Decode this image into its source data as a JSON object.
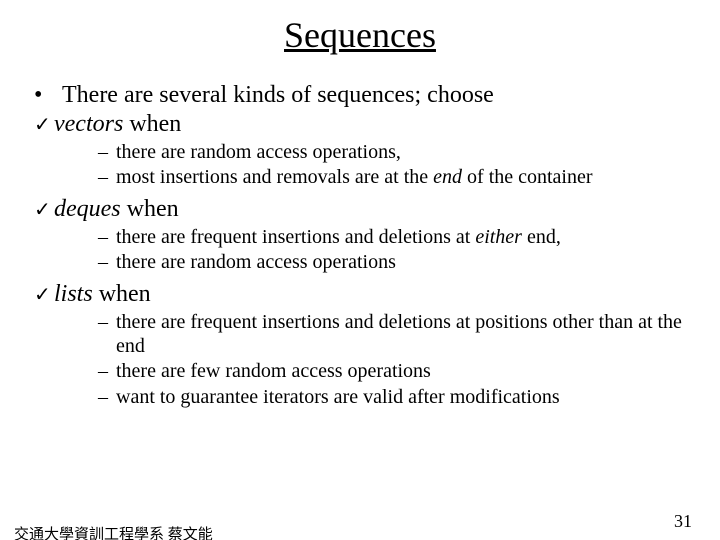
{
  "title": "Sequences",
  "intro": "There are several kinds of sequences; choose",
  "sections": [
    {
      "keyword": "vectors",
      "suffix": " when",
      "subs": [
        {
          "pre": "there are random access operations,",
          "em": "",
          "post": ""
        },
        {
          "pre": "most insertions and removals are at the ",
          "em": "end",
          "post": " of the container"
        }
      ]
    },
    {
      "keyword": "deques",
      "suffix": " when",
      "subs": [
        {
          "pre": "there are frequent insertions and deletions at ",
          "em": "either",
          "post": " end,"
        },
        {
          "pre": "there are random access operations",
          "em": "",
          "post": ""
        }
      ]
    },
    {
      "keyword": "lists",
      "suffix": " when",
      "subs": [
        {
          "pre": "there are frequent insertions and deletions at positions other than at the end",
          "em": "",
          "post": ""
        },
        {
          "pre": "there are few random access operations",
          "em": "",
          "post": ""
        },
        {
          "pre": "want to guarantee iterators are valid after modifications",
          "em": "",
          "post": ""
        }
      ]
    }
  ],
  "footer_left": "交通大學資訓工程學系 蔡文能",
  "page_number": "31",
  "check_glyph": "✓",
  "bullet_glyph": "•",
  "dash_glyph": "–"
}
